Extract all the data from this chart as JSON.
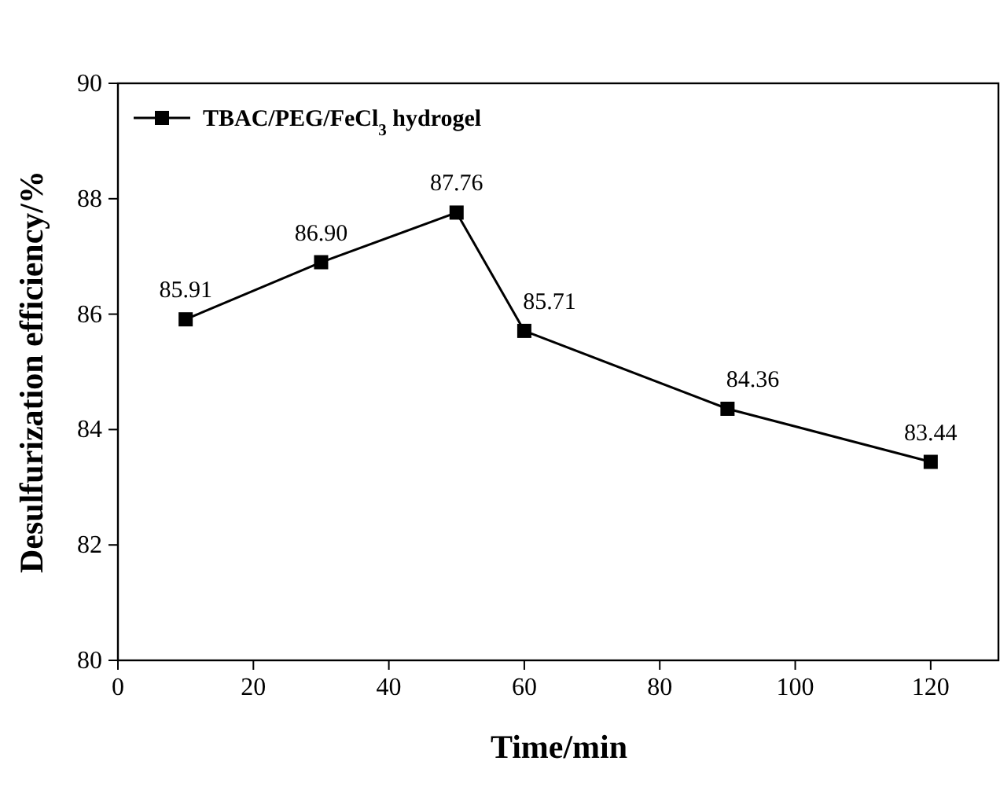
{
  "chart_data": {
    "type": "line",
    "xlabel": "Time/min",
    "ylabel": "Desulfurization efficiency/%",
    "x": [
      10,
      30,
      50,
      60,
      90,
      120
    ],
    "series": [
      {
        "name": "TBAC/PEG/FeCl$_{3}$ hydrogel",
        "color": "#000000",
        "values": [
          85.91,
          86.9,
          87.76,
          85.71,
          84.36,
          83.44
        ],
        "value_labels": [
          "85.91",
          "86.90",
          "87.76",
          "85.71",
          "84.36",
          "83.44"
        ]
      }
    ],
    "xlim": [
      0,
      130
    ],
    "xticks": [
      0,
      20,
      40,
      60,
      80,
      100,
      120
    ],
    "ylim": [
      80,
      90
    ],
    "yticks": [
      80,
      82,
      84,
      86,
      88,
      90
    ],
    "marker": "square",
    "legend": "top left",
    "grid": false
  }
}
